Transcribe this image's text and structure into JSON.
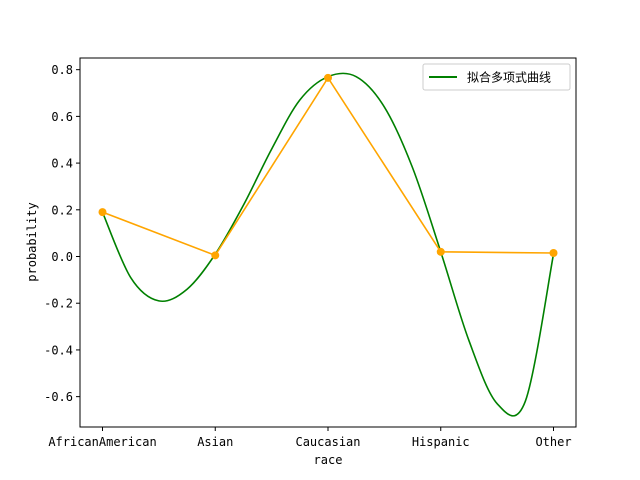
{
  "chart_data": {
    "type": "line",
    "xlabel": "race",
    "ylabel": "probability",
    "categories": [
      "AfricanAmerican",
      "Asian",
      "Caucasian",
      "Hispanic",
      "Other"
    ],
    "ylim": [
      -0.73,
      0.85
    ],
    "yticks": [
      -0.6,
      -0.4,
      -0.2,
      0.0,
      0.2,
      0.4,
      0.6,
      0.8
    ],
    "ytick_labels": [
      "-0.6",
      "-0.4",
      "-0.2",
      "0.0",
      "0.2",
      "0.4",
      "0.6",
      "0.8"
    ],
    "grid": false,
    "legend_position": "top-right",
    "series": [
      {
        "name": "拟合多项式曲线",
        "kind": "polynomial-fit",
        "color": "#008000",
        "x": [
          0,
          0.25,
          0.5,
          0.75,
          1,
          1.25,
          1.5,
          1.75,
          2,
          2.25,
          2.5,
          2.75,
          3,
          3.25,
          3.5,
          3.75,
          4
        ],
        "y": [
          0.19,
          -0.09,
          -0.19,
          -0.14,
          0.01,
          0.22,
          0.46,
          0.67,
          0.77,
          0.77,
          0.64,
          0.38,
          0.02,
          -0.36,
          -0.63,
          -0.62,
          0.01
        ]
      },
      {
        "kind": "data",
        "color": "#ffa500",
        "x": [
          0,
          1,
          2,
          3,
          4
        ],
        "y": [
          0.19,
          0.005,
          0.765,
          0.02,
          0.015
        ]
      }
    ]
  }
}
